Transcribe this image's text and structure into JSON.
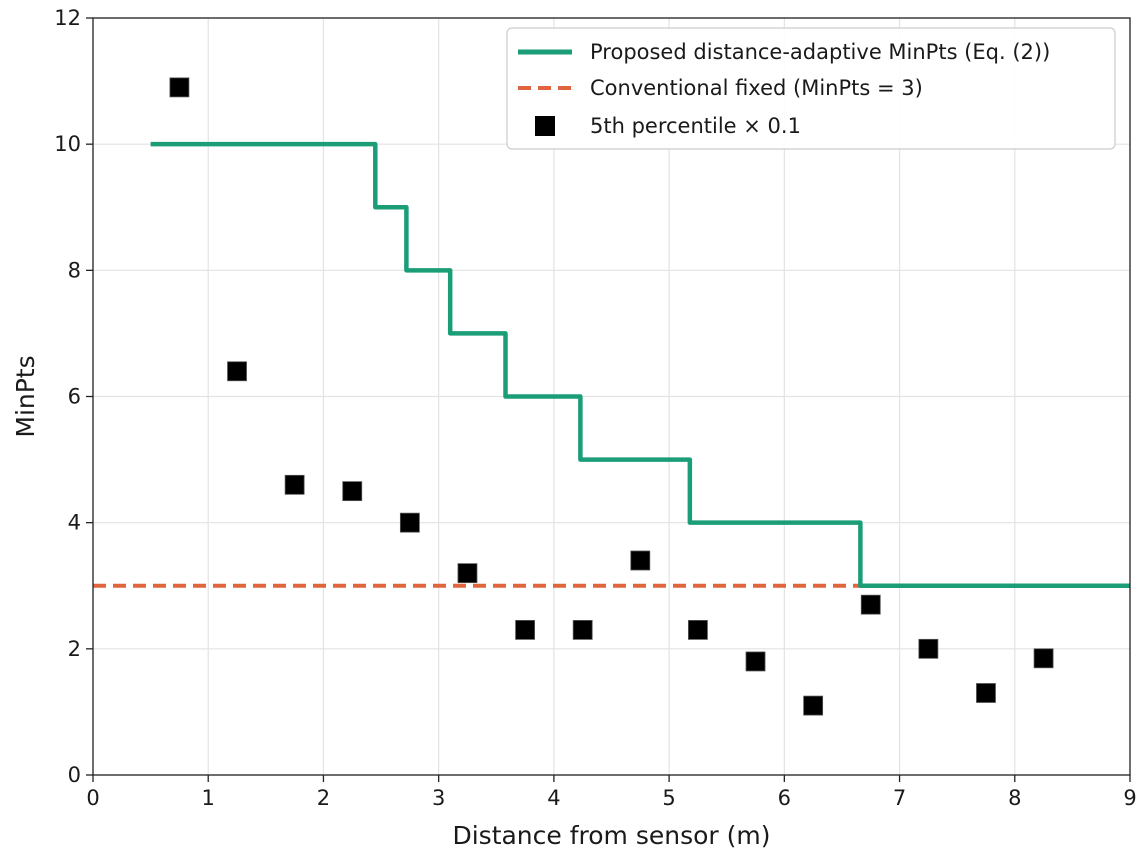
{
  "chart_data": {
    "type": "line",
    "title": "",
    "xlabel": "Distance from sensor (m)",
    "ylabel": "MinPts",
    "xlim": [
      0,
      9
    ],
    "ylim": [
      0,
      12
    ],
    "xticks": [
      0,
      1,
      2,
      3,
      4,
      5,
      6,
      7,
      8,
      9
    ],
    "yticks": [
      0,
      2,
      4,
      6,
      8,
      10,
      12
    ],
    "grid": true,
    "legend_position": "top-right",
    "series": [
      {
        "name": "Proposed distance-adaptive MinPts (Eq. (2))",
        "kind": "step-line",
        "color": "#1b9e77",
        "x": [
          0.5,
          2.45,
          2.45,
          2.72,
          2.72,
          3.1,
          3.1,
          3.58,
          3.58,
          4.23,
          4.23,
          5.18,
          5.18,
          6.66,
          6.66,
          9.0
        ],
        "y": [
          10,
          10,
          9,
          9,
          8,
          8,
          7,
          7,
          6,
          6,
          5,
          5,
          4,
          4,
          3,
          3
        ]
      },
      {
        "name": "Conventional fixed (MinPts = 3)",
        "kind": "dashed-line",
        "color": "#e0643c",
        "x": [
          0,
          9
        ],
        "y": [
          3,
          3
        ]
      },
      {
        "name": "5th percentile × 0.1",
        "kind": "scatter-square",
        "color": "#000000",
        "x": [
          0.75,
          1.25,
          1.75,
          2.25,
          2.75,
          3.25,
          3.75,
          4.25,
          4.75,
          5.25,
          5.75,
          6.25,
          6.75,
          7.25,
          7.75,
          8.25
        ],
        "y": [
          10.9,
          6.4,
          4.6,
          4.5,
          4.0,
          3.2,
          2.3,
          2.3,
          3.4,
          2.3,
          1.8,
          1.1,
          2.7,
          2.0,
          1.3,
          1.85
        ]
      }
    ]
  }
}
